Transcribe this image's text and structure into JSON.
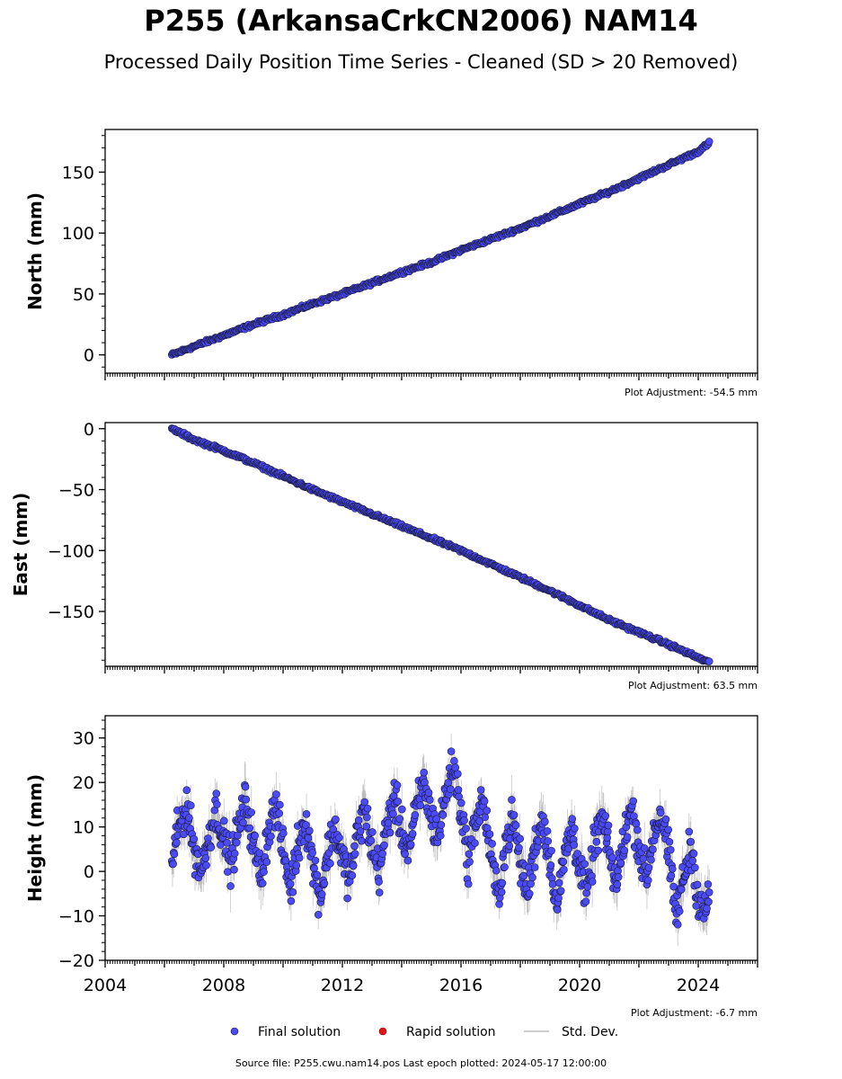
{
  "title": "P255 (ArkansaCrkCN2006) NAM14",
  "subtitle": "Processed Daily Position Time Series - Cleaned (SD > 20 Removed)",
  "footer": "Source file: P255.cwu.nam14.pos  Last epoch plotted: 2024-05-17 12:00:00",
  "colors": {
    "final": "#4b4bf5",
    "rapid": "#e0161a",
    "std": "#bdbdbd",
    "edge": "#1a1a40"
  },
  "legend": {
    "final": "Final solution",
    "rapid": "Rapid solution",
    "std": "Std. Dev."
  },
  "chart_data": [
    {
      "type": "scatter",
      "ylabel": "North (mm)",
      "adjustment": "Plot Adjustment: -54.5 mm",
      "xlim": [
        2004,
        2026
      ],
      "ylim": [
        -15,
        185
      ],
      "yticks": [
        0,
        50,
        100,
        150
      ],
      "x": [
        2006.25,
        2007,
        2008,
        2009,
        2010,
        2011,
        2012,
        2013,
        2014,
        2015,
        2016,
        2017,
        2018,
        2019,
        2020,
        2021,
        2022,
        2023,
        2024,
        2024.38
      ],
      "y": [
        0,
        7,
        16,
        25,
        33,
        42,
        50,
        59,
        68,
        76,
        86,
        95,
        104,
        114,
        124,
        134,
        145,
        156,
        167,
        174
      ]
    },
    {
      "type": "scatter",
      "ylabel": "East (mm)",
      "adjustment": "Plot Adjustment: 63.5 mm",
      "xlim": [
        2004,
        2026
      ],
      "ylim": [
        -195,
        5
      ],
      "yticks": [
        0,
        -50,
        -100,
        -150
      ],
      "x": [
        2006.25,
        2007,
        2008,
        2009,
        2010,
        2011,
        2012,
        2013,
        2014,
        2015,
        2016,
        2017,
        2018,
        2019,
        2020,
        2021,
        2022,
        2023,
        2024,
        2024.38
      ],
      "y": [
        0,
        -9,
        -18,
        -28,
        -39,
        -50,
        -60,
        -70,
        -80,
        -90,
        -100,
        -111,
        -122,
        -133,
        -145,
        -157,
        -167,
        -177,
        -188,
        -192
      ]
    },
    {
      "type": "scatter",
      "ylabel": "Height (mm)",
      "adjustment": "Plot Adjustment: -6.7 mm",
      "xlim": [
        2004,
        2026
      ],
      "ylim": [
        -20,
        35
      ],
      "yticks": [
        -20,
        -10,
        0,
        10,
        20,
        30
      ],
      "xticks": [
        2004,
        2008,
        2012,
        2016,
        2020,
        2024
      ],
      "x": [
        2006.25,
        2006.5,
        2006.75,
        2007.0,
        2007.25,
        2007.5,
        2007.75,
        2008.0,
        2008.25,
        2008.5,
        2008.75,
        2009.0,
        2009.25,
        2009.5,
        2009.75,
        2010.0,
        2010.25,
        2010.5,
        2010.75,
        2011.0,
        2011.25,
        2011.5,
        2011.75,
        2012.0,
        2012.25,
        2012.5,
        2012.75,
        2013.0,
        2013.25,
        2013.5,
        2013.75,
        2014.0,
        2014.25,
        2014.5,
        2014.75,
        2015.0,
        2015.25,
        2015.5,
        2015.75,
        2016.0,
        2016.25,
        2016.5,
        2016.75,
        2017.0,
        2017.25,
        2017.5,
        2017.75,
        2018.0,
        2018.25,
        2018.5,
        2018.75,
        2019.0,
        2019.25,
        2019.5,
        2019.75,
        2020.0,
        2020.25,
        2020.5,
        2020.75,
        2021.0,
        2021.25,
        2021.5,
        2021.75,
        2022.0,
        2022.25,
        2022.5,
        2022.75,
        2023.0,
        2023.25,
        2023.5,
        2023.75,
        2024.0,
        2024.25,
        2024.38
      ],
      "y": [
        3,
        10,
        15,
        5,
        0,
        8,
        14,
        7,
        2,
        10,
        16,
        6,
        -1,
        9,
        15,
        5,
        -4,
        6,
        12,
        2,
        -6,
        4,
        10,
        3,
        -2,
        8,
        14,
        5,
        0,
        10,
        17,
        9,
        5,
        14,
        20,
        12,
        8,
        18,
        24,
        14,
        2,
        12,
        16,
        4,
        -6,
        6,
        12,
        2,
        -5,
        6,
        12,
        3,
        -8,
        4,
        10,
        1,
        -6,
        6,
        12,
        4,
        -3,
        8,
        14,
        6,
        -2,
        9,
        13,
        4,
        -10,
        -2,
        6,
        -6,
        -10,
        -4
      ]
    }
  ]
}
